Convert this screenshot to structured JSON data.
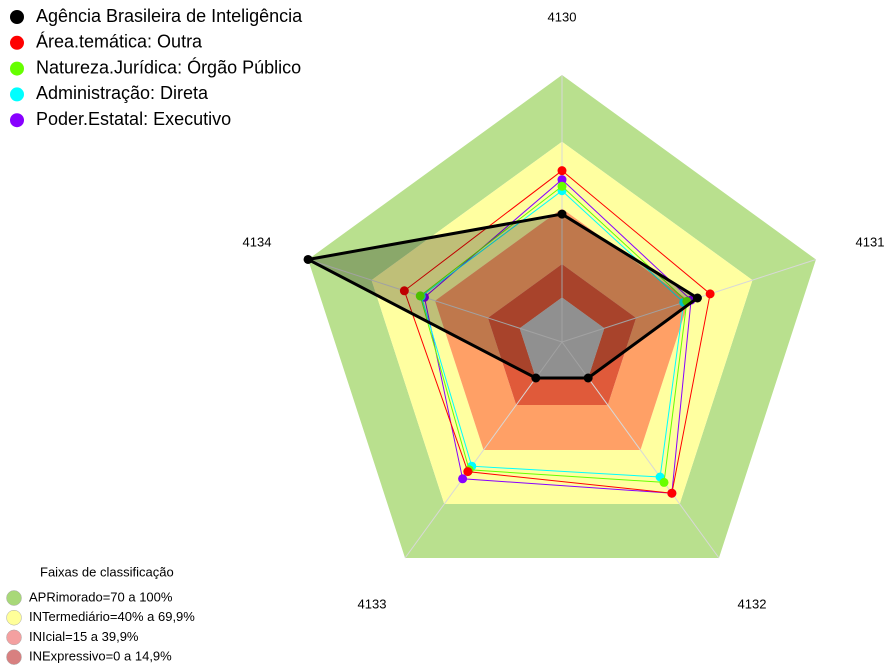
{
  "chart_data": {
    "type": "radar",
    "categories": [
      "4130",
      "4131",
      "4132",
      "4133",
      "4134"
    ],
    "rlim": [
      -20,
      100
    ],
    "series": [
      {
        "name": "Agência Brasileira de Inteligência",
        "color": "#000000",
        "values": [
          37.5,
          44,
          0,
          0,
          100
        ]
      },
      {
        "name": "Área.temática: Outra",
        "color": "#ff0000",
        "values": [
          57,
          50,
          64,
          52,
          54.5
        ]
      },
      {
        "name": "Natureza.Jurídica: Órgão Público",
        "color": "#66ff00",
        "values": [
          50,
          39,
          58,
          51,
          47
        ]
      },
      {
        "name": "Administração: Direta",
        "color": "#00ffff",
        "values": [
          48,
          37.5,
          55,
          49,
          46.5
        ]
      },
      {
        "name": "Poder.Estatal: Executivo",
        "color": "#8800ff",
        "values": [
          53,
          41,
          64,
          56,
          45
        ]
      }
    ],
    "bands_title": "Faixas de classificação",
    "bands": [
      {
        "name": "APRimorado=70 a 100%",
        "from": 70,
        "to": 100,
        "color": "#b9e08e",
        "marker_color": "#a8d878"
      },
      {
        "name": "INTermediário=40% a 69,9%",
        "from": 40,
        "to": 70,
        "color": "#ffffa0",
        "marker_color": "#ffff99"
      },
      {
        "name": "INIcial=15 a 39,9%",
        "from": 15,
        "to": 40,
        "color": "#ffa066",
        "marker_color": "#f4a0a0"
      },
      {
        "name": "INExpressivo=0 a 14,9%",
        "from": 0,
        "to": 15,
        "color": "#e05a3a",
        "marker_color": "#d88080"
      }
    ]
  }
}
